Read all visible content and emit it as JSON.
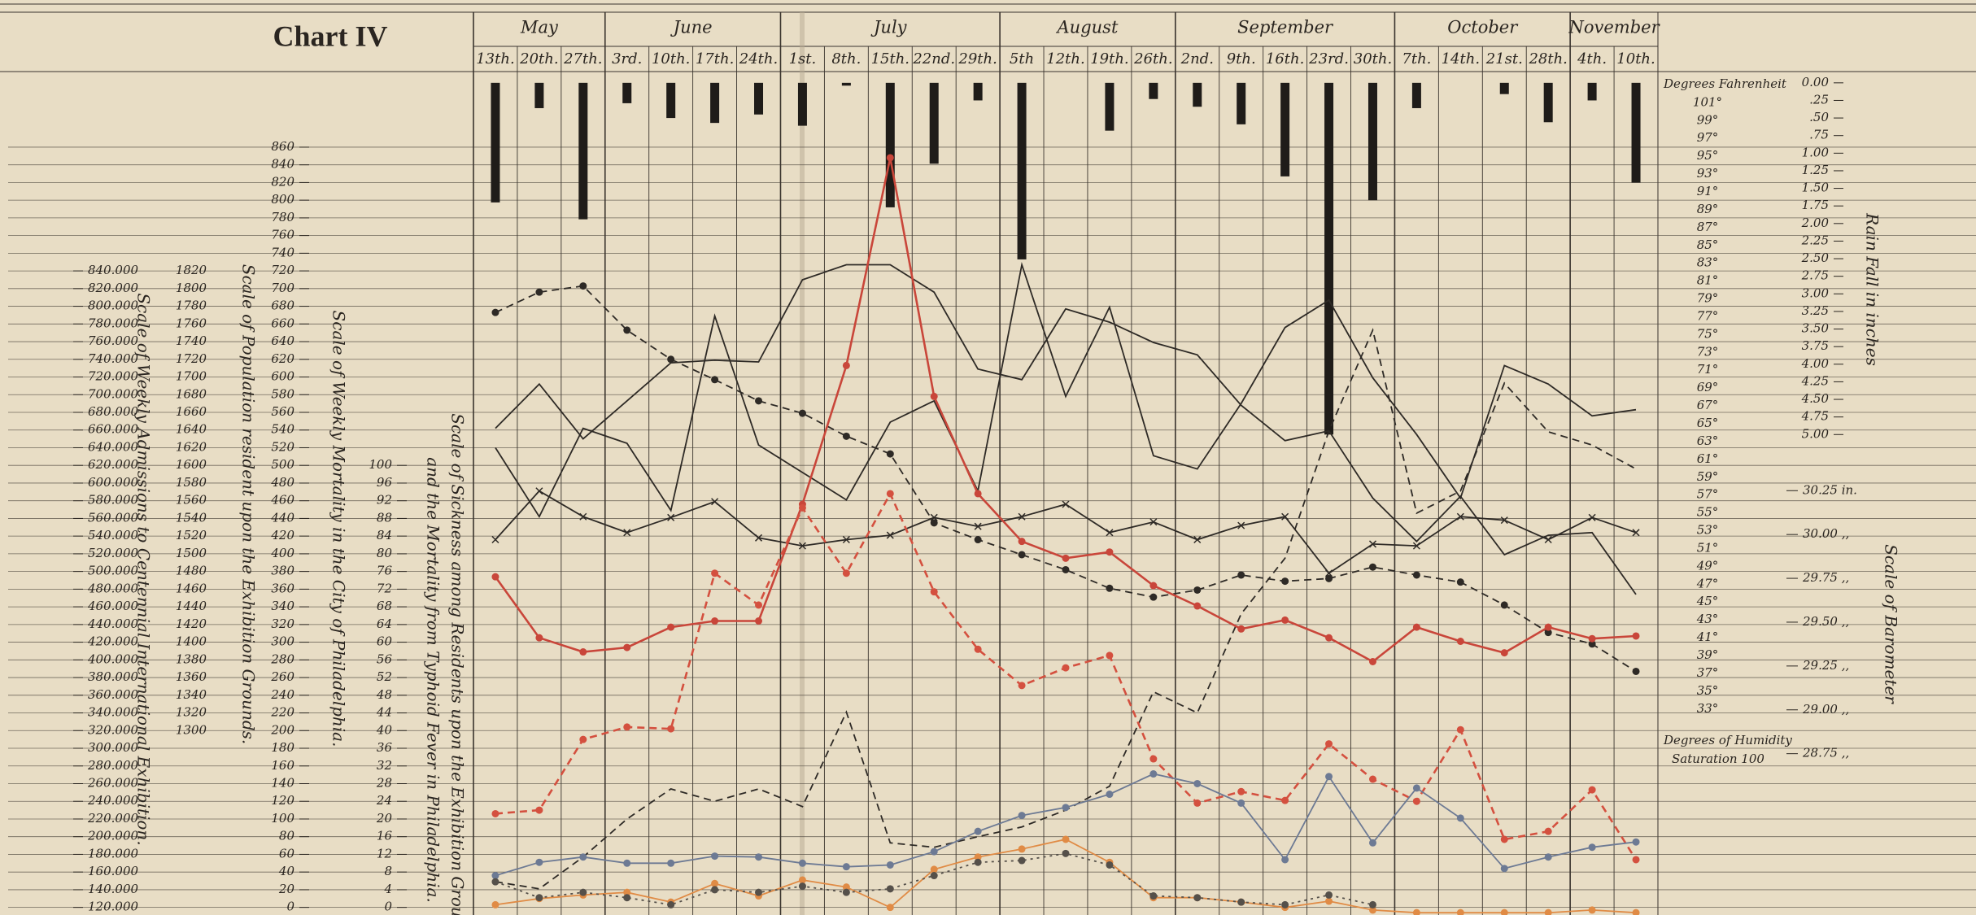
{
  "chart_data": {
    "type": "line",
    "title": "Chart IV",
    "months": [
      "May",
      "June",
      "July",
      "August",
      "September",
      "October",
      "November"
    ],
    "categories": [
      "13th.",
      "20th.",
      "27th.",
      "3rd.",
      "10th.",
      "17th.",
      "24th.",
      "1st.",
      "8th.",
      "15th.",
      "22nd.",
      "29th.",
      "5th",
      "12th.",
      "19th.",
      "26th.",
      "2nd.",
      "9th.",
      "16th.",
      "23rd.",
      "30th.",
      "7th.",
      "14th.",
      "21st.",
      "28th.",
      "4th.",
      "10th."
    ],
    "y_label": "Scale of Weekly Mortality in the City of Philadelphia.",
    "ylim": [
      -8.6,
      945.5
    ],
    "yticks": [
      0,
      20,
      40,
      60,
      80,
      100,
      120,
      140,
      160,
      180,
      200,
      220,
      240,
      260,
      280,
      300,
      320,
      340,
      360,
      380,
      400,
      420,
      440,
      460,
      480,
      500,
      520,
      540,
      560,
      580,
      600,
      620,
      640,
      660,
      680,
      700,
      720,
      740,
      760,
      780,
      800,
      820,
      840,
      860
    ],
    "grid": true,
    "extra_axes": [
      {
        "label": "Scale of Weekly Admissions to Centennial International Exhibition.",
        "lim": [
          111400,
          1065500
        ],
        "ticks": [
          {
            "value": 840000,
            "label": "840.000"
          },
          {
            "value": 820000,
            "label": "820.000"
          },
          {
            "value": 800000,
            "label": "800.000"
          },
          {
            "value": 780000,
            "label": "780.000"
          },
          {
            "value": 760000,
            "label": "760.000"
          },
          {
            "value": 740000,
            "label": "740.000"
          },
          {
            "value": 720000,
            "label": "720.000"
          },
          {
            "value": 700000,
            "label": "700.000"
          },
          {
            "value": 680000,
            "label": "680.000"
          },
          {
            "value": 660000,
            "label": "660.000"
          },
          {
            "value": 640000,
            "label": "640.000"
          },
          {
            "value": 620000,
            "label": "620.000"
          },
          {
            "value": 600000,
            "label": "600.000"
          },
          {
            "value": 580000,
            "label": "580.000"
          },
          {
            "value": 560000,
            "label": "560.000"
          },
          {
            "value": 540000,
            "label": "540.000"
          },
          {
            "value": 520000,
            "label": "520.000"
          },
          {
            "value": 500000,
            "label": "500.000"
          },
          {
            "value": 480000,
            "label": "480.000"
          },
          {
            "value": 460000,
            "label": "460.000"
          },
          {
            "value": 440000,
            "label": "440.000"
          },
          {
            "value": 420000,
            "label": "420.000"
          },
          {
            "value": 400000,
            "label": "400.000"
          },
          {
            "value": 380000,
            "label": "380.000"
          },
          {
            "value": 360000,
            "label": "360.000"
          },
          {
            "value": 340000,
            "label": "340.000"
          },
          {
            "value": 320000,
            "label": "320.000"
          },
          {
            "value": 300000,
            "label": "300.000"
          },
          {
            "value": 280000,
            "label": "280.000"
          },
          {
            "value": 260000,
            "label": "260.000"
          },
          {
            "value": 240000,
            "label": "240.000"
          },
          {
            "value": 220000,
            "label": "220.000"
          },
          {
            "value": 200000,
            "label": "200.000"
          },
          {
            "value": 180000,
            "label": "180.000"
          },
          {
            "value": 160000,
            "label": "160.000"
          },
          {
            "value": 140000,
            "label": "140.000"
          },
          {
            "value": 120000,
            "label": "120.000"
          }
        ]
      },
      {
        "label": "Scale of Population resident upon the Exhibition Grounds.",
        "lim": [
          1091.4,
          2045.5
        ],
        "ticks": [
          1820,
          1800,
          1780,
          1760,
          1740,
          1720,
          1700,
          1680,
          1660,
          1640,
          1620,
          1600,
          1580,
          1560,
          1540,
          1520,
          1500,
          1480,
          1460,
          1440,
          1420,
          1400,
          1380,
          1360,
          1340,
          1320,
          1300
        ]
      },
      {
        "label": [
          "Scale of Sickness among Residents upon the Exhibition Grounds",
          "and the Mortality from Typhoid Fever in Philadelphia."
        ],
        "lim": [
          -1.72,
          189.1
        ],
        "ticks": [
          100,
          96,
          92,
          88,
          84,
          80,
          76,
          72,
          68,
          64,
          60,
          56,
          52,
          48,
          44,
          40,
          36,
          32,
          28,
          24,
          20,
          16,
          12,
          8,
          4,
          0
        ]
      },
      {
        "label": "Degrees Fahrenheit",
        "lim": [
          9.9,
          104.5
        ],
        "ticks": [
          {
            "value": 101,
            "label": "101°"
          },
          {
            "value": 99,
            "label": "99°"
          },
          {
            "value": 97,
            "label": "97°"
          },
          {
            "value": 95,
            "label": "95°"
          },
          {
            "value": 93,
            "label": "93°"
          },
          {
            "value": 91,
            "label": "91°"
          },
          {
            "value": 89,
            "label": "89°"
          },
          {
            "value": 87,
            "label": "87°"
          },
          {
            "value": 85,
            "label": "85°"
          },
          {
            "value": 83,
            "label": "83°"
          },
          {
            "value": 81,
            "label": "81°"
          },
          {
            "value": 79,
            "label": "79°"
          },
          {
            "value": 77,
            "label": "77°"
          },
          {
            "value": 75,
            "label": "75°"
          },
          {
            "value": 73,
            "label": "73°"
          },
          {
            "value": 71,
            "label": "71°"
          },
          {
            "value": 69,
            "label": "69°"
          },
          {
            "value": 67,
            "label": "67°"
          },
          {
            "value": 65,
            "label": "65°"
          },
          {
            "value": 63,
            "label": "63°"
          },
          {
            "value": 61,
            "label": "61°"
          },
          {
            "value": 59,
            "label": "59°"
          },
          {
            "value": 57,
            "label": "57°"
          },
          {
            "value": 55,
            "label": "55°"
          },
          {
            "value": 53,
            "label": "53°"
          },
          {
            "value": 51,
            "label": "51°"
          },
          {
            "value": 49,
            "label": "49°"
          },
          {
            "value": 47,
            "label": "47°"
          },
          {
            "value": 45,
            "label": "45°"
          },
          {
            "value": 43,
            "label": "43°"
          },
          {
            "value": 41,
            "label": "41°"
          },
          {
            "value": 39,
            "label": "39°"
          },
          {
            "value": 37,
            "label": "37°"
          },
          {
            "value": 35,
            "label": "35°"
          },
          {
            "value": 33,
            "label": "33°"
          }
        ]
      },
      {
        "label": "Rain Fall in inches",
        "lim": [
          11.83,
          -0.16
        ],
        "ticks": [
          {
            "value": 0,
            "label": "0.00"
          },
          {
            "value": 0.25,
            "label": ".25"
          },
          {
            "value": 0.5,
            "label": ".50"
          },
          {
            "value": 0.75,
            "label": ".75"
          },
          {
            "value": 1,
            "label": "1.00"
          },
          {
            "value": 1.25,
            "label": "1.25"
          },
          {
            "value": 1.5,
            "label": "1.50"
          },
          {
            "value": 1.75,
            "label": "1.75"
          },
          {
            "value": 2,
            "label": "2.00"
          },
          {
            "value": 2.25,
            "label": "2.25"
          },
          {
            "value": 2.5,
            "label": "2.50"
          },
          {
            "value": 2.75,
            "label": "2.75"
          },
          {
            "value": 3,
            "label": "3.00"
          },
          {
            "value": 3.25,
            "label": "3.25"
          },
          {
            "value": 3.5,
            "label": "3.50"
          },
          {
            "value": 3.75,
            "label": "3.75"
          },
          {
            "value": 4,
            "label": "4.00"
          },
          {
            "value": 4.25,
            "label": "4.25"
          },
          {
            "value": 4.5,
            "label": "4.50"
          },
          {
            "value": 4.75,
            "label": "4.75"
          },
          {
            "value": 5,
            "label": "5.00"
          }
        ]
      },
      {
        "label": "Scale of Barometer",
        "lim": [
          27.83,
          32.64
        ],
        "ticks": [
          {
            "value": 30.25,
            "label": "30.25 in."
          },
          {
            "value": 30,
            "label": "30.00 ,,"
          },
          {
            "value": 29.75,
            "label": "29.75 ,,"
          },
          {
            "value": 29.5,
            "label": "29.50 ,,"
          },
          {
            "value": 29.25,
            "label": "29.25 ,,"
          },
          {
            "value": 29,
            "label": "29.00 ,,"
          },
          {
            "value": 28.75,
            "label": "28.75 ,,"
          }
        ]
      }
    ],
    "annotations": [
      "Degrees of Humidity",
      "Saturation 100"
    ],
    "series": [
      {
        "kind": "bar",
        "axis": "rain",
        "color": "#1f1c19",
        "values": [
          1.7,
          0.36,
          1.94,
          0.29,
          0.5,
          0.57,
          0.45,
          0.61,
          0.04,
          1.77,
          1.15,
          0.25,
          2.51,
          0,
          0.68,
          0.23,
          0.34,
          0.59,
          1.33,
          5.0,
          1.67,
          0.36,
          0,
          0.16,
          0.56,
          0.25,
          1.42
        ]
      },
      {
        "color": "#2e2a26",
        "style": "solid",
        "marker": "none",
        "values": [
          542,
          592,
          530,
          573,
          616,
          619,
          617,
          710,
          727,
          727,
          696,
          609,
          597,
          677,
          662,
          639,
          625,
          568,
          528,
          539,
          463,
          414,
          465,
          399,
          421,
          424,
          354
        ]
      },
      {
        "color": "#2e2a26",
        "style": "solid",
        "marker": "none",
        "values": [
          520,
          442,
          542,
          525,
          449,
          669,
          523,
          492,
          461,
          549,
          573,
          471,
          727,
          578,
          679,
          511,
          496,
          570,
          656,
          687,
          599,
          535,
          463,
          613,
          592,
          556,
          563
        ]
      },
      {
        "color": "#2e2a26",
        "style": "solid",
        "marker": "x",
        "values": [
          416,
          471,
          442,
          424,
          441,
          459,
          418,
          409,
          416,
          421,
          441,
          431,
          442,
          456,
          424,
          436,
          416,
          432,
          442,
          378,
          411,
          409,
          442,
          438,
          416,
          441,
          424
        ]
      },
      {
        "color": "#2e2a26",
        "style": "dashed",
        "marker": "dot",
        "values": [
          673,
          696,
          703,
          653,
          620,
          597,
          573,
          559,
          533,
          513,
          435,
          416,
          399,
          382,
          361,
          351,
          359,
          376,
          369,
          372,
          385,
          376,
          368,
          342,
          311,
          298,
          267
        ]
      },
      {
        "color": "#2e2a26",
        "style": "dashed",
        "marker": "none",
        "values": [
          29,
          21,
          57,
          100,
          134,
          120,
          134,
          114,
          221,
          73,
          68,
          80,
          91,
          110,
          137,
          244,
          220,
          332,
          395,
          539,
          653,
          446,
          471,
          593,
          538,
          523,
          496
        ]
      },
      {
        "color": "#c9463a",
        "style": "solid",
        "marker": "dot",
        "values": [
          374,
          305,
          289,
          294,
          317,
          324,
          324,
          456,
          613,
          848,
          578,
          468,
          414,
          395,
          402,
          364,
          341,
          315,
          325,
          305,
          278,
          317,
          301,
          288,
          317,
          304,
          307
        ]
      },
      {
        "color": "#d4503f",
        "style": "dashed",
        "marker": "dot",
        "values": [
          106,
          110,
          190,
          204,
          202,
          378,
          342,
          452,
          378,
          468,
          357,
          292,
          251,
          271,
          285,
          168,
          118,
          131,
          121,
          185,
          145,
          120,
          201,
          77,
          86,
          133,
          54
        ]
      },
      {
        "color": "#6d7a94",
        "style": "solid",
        "marker": "dot",
        "values": [
          36,
          51,
          57,
          50,
          50,
          58,
          57,
          50,
          46,
          48,
          63,
          86,
          104,
          113,
          128,
          151,
          140,
          118,
          54,
          148,
          73,
          135,
          101,
          44,
          57,
          68,
          74
        ]
      },
      {
        "color": "#e08b45",
        "style": "solid",
        "marker": "dot",
        "values": [
          3,
          10,
          14,
          17,
          6,
          27,
          13,
          31,
          23,
          0,
          43,
          57,
          66,
          77,
          51,
          11,
          11,
          6,
          0,
          7,
          -3,
          -6,
          -6,
          -6,
          -6,
          -3,
          -6
        ]
      },
      {
        "color": "#55504a",
        "style": "dotted",
        "marker": "dot",
        "values": [
          29,
          11,
          17,
          11,
          3,
          20,
          17,
          24,
          17,
          21,
          36,
          51,
          53,
          61,
          48,
          13,
          11,
          6,
          3,
          14,
          3,
          null,
          null,
          null,
          null,
          null,
          null
        ]
      }
    ]
  }
}
